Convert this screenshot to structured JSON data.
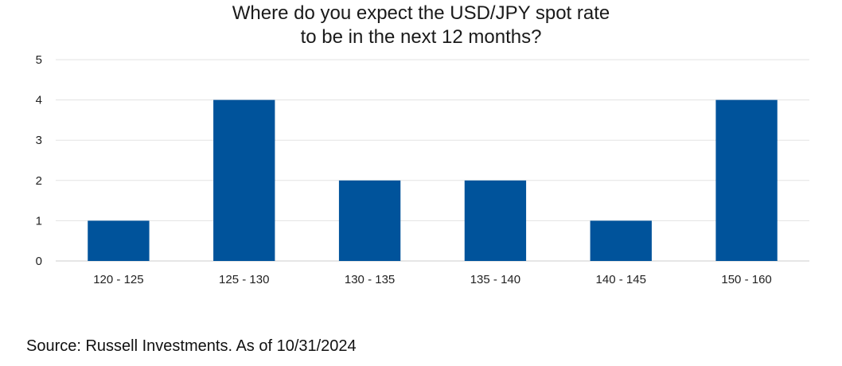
{
  "chart_data": {
    "type": "bar",
    "title_lines": [
      "Where do you expect the USD/JPY spot rate",
      "to be in the next 12 months?"
    ],
    "categories": [
      "120 - 125",
      "125 - 130",
      "130 - 135",
      "135 - 140",
      "140 - 145",
      "150 - 160"
    ],
    "values": [
      1,
      4,
      2,
      2,
      1,
      4
    ],
    "y_ticks": [
      "0",
      "1",
      "2",
      "3",
      "4",
      "5"
    ],
    "ylim": [
      0,
      5
    ],
    "xlabel": "",
    "ylabel": "",
    "grid": true,
    "legend": "none",
    "bar_color": "#00539b",
    "grid_color": "#e3e3e3"
  },
  "source": "Source: Russell Investments. As of 10/31/2024"
}
